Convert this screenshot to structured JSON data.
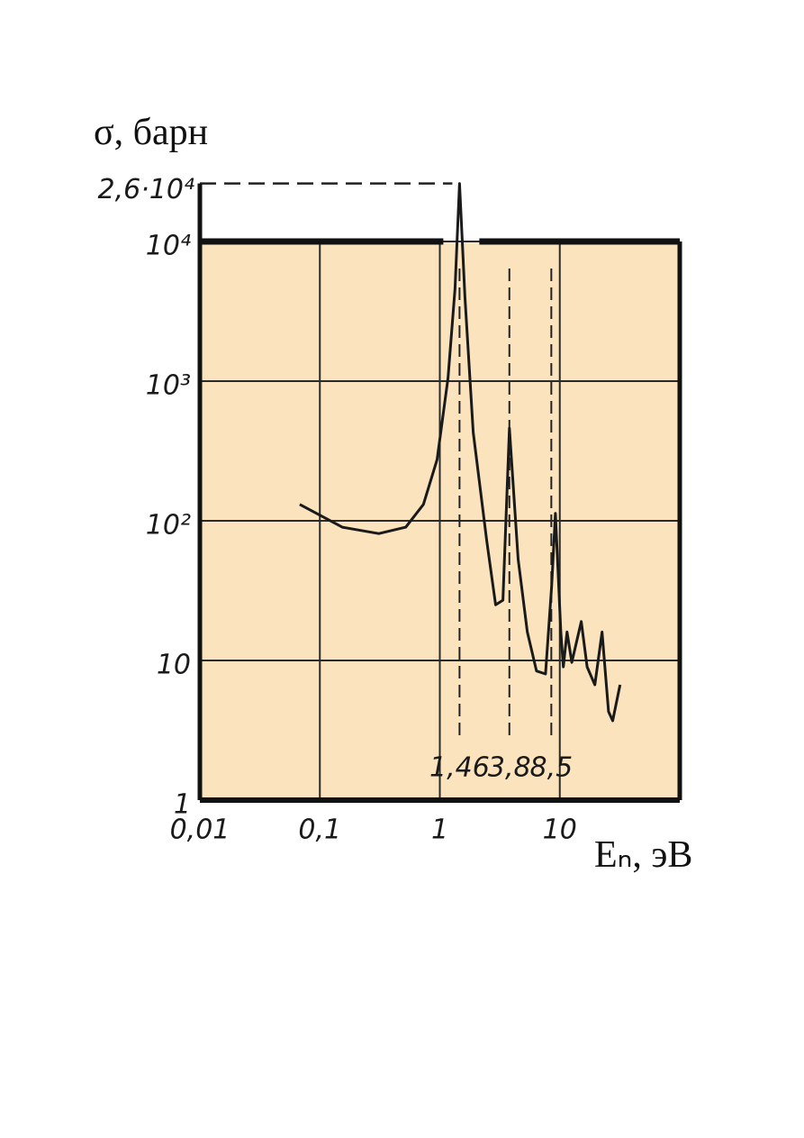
{
  "chart_data": {
    "type": "line",
    "y_label": "σ, барн",
    "x_label": "Eₙ, эВ",
    "x": [
      0.068,
      0.154,
      0.31,
      0.52,
      0.73,
      0.95,
      1.17,
      1.34,
      1.46,
      1.62,
      1.9,
      2.46,
      2.92,
      3.36,
      3.8,
      4.5,
      5.36,
      6.4,
      7.6,
      8.55,
      9.2,
      10.2,
      10.7,
      11.5,
      12.6,
      15.1,
      16.9,
      19.6,
      22.5,
      25.5,
      27.6,
      31.8
    ],
    "series": [
      {
        "color": "#1a1a1a",
        "values": [
          131,
          90,
          81,
          90,
          131,
          275,
          1050,
          4600,
          26000,
          4000,
          430,
          72,
          25,
          27,
          460,
          53,
          16,
          8.4,
          8,
          34,
          113,
          16,
          9,
          16,
          9.7,
          19,
          9,
          6.7,
          16,
          4.3,
          3.7,
          6.7
        ]
      }
    ],
    "xscale": "log",
    "yscale": "log",
    "xlim": [
      0.01,
      100
    ],
    "ylim": [
      1,
      10000
    ],
    "xticks": [
      {
        "value": 0.01,
        "label": "0,01"
      },
      {
        "value": 0.1,
        "label": "0,1"
      },
      1,
      10
    ],
    "yticks": [
      1,
      10,
      {
        "value": 100,
        "label": "10²"
      },
      {
        "value": 1000,
        "label": "10³"
      },
      {
        "value": 10000,
        "label": "10⁴"
      }
    ],
    "grid": true,
    "plot_background": "#fbe4bd",
    "peak_level": {
      "value": 26000,
      "label": "2,6·10⁴"
    },
    "resonances": [
      {
        "value": 1.46,
        "label": "1,46"
      },
      {
        "value": 3.8,
        "label": "3,8"
      },
      {
        "value": 8.5,
        "label": "8,5"
      }
    ]
  }
}
